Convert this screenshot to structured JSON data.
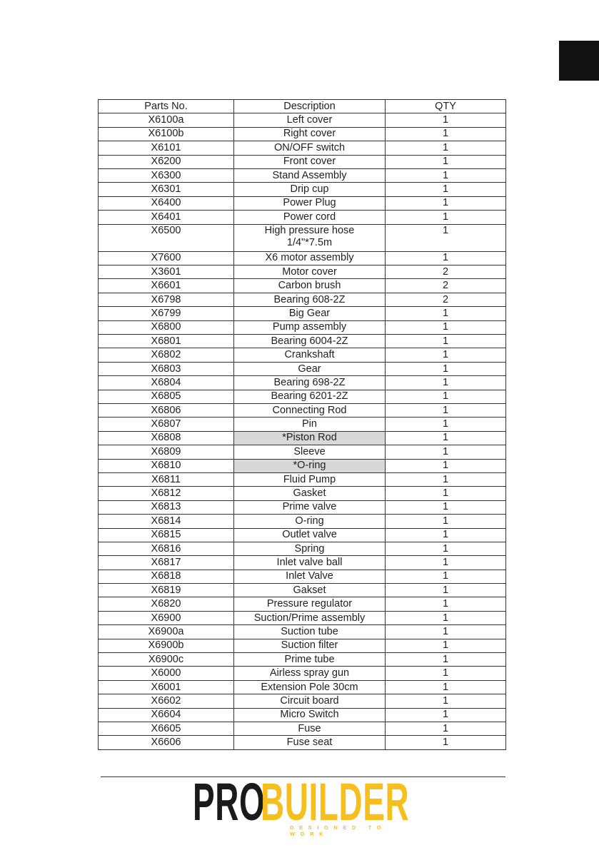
{
  "header_row": {
    "part": "Parts No.",
    "desc": "Description",
    "qty": "QTY"
  },
  "rows": [
    {
      "part": "X6100a",
      "desc": "Left cover",
      "qty": "1"
    },
    {
      "part": "X6100b",
      "desc": "Right cover",
      "qty": "1"
    },
    {
      "part": "X6101",
      "desc": "ON/OFF switch",
      "qty": "1"
    },
    {
      "part": "X6200",
      "desc": "Front cover",
      "qty": "1"
    },
    {
      "part": "X6300",
      "desc": "Stand Assembly",
      "qty": "1"
    },
    {
      "part": "X6301",
      "desc": "Drip cup",
      "qty": "1"
    },
    {
      "part": "X6400",
      "desc": "Power Plug",
      "qty": "1"
    },
    {
      "part": "X6401",
      "desc": "Power cord",
      "qty": "1"
    },
    {
      "part": "X6500",
      "desc": "High pressure hose\n1/4\"*7.5m",
      "qty": "1",
      "tall": true
    },
    {
      "part": "X7600",
      "desc": "X6 motor assembly",
      "qty": "1"
    },
    {
      "part": "X3601",
      "desc": "Motor cover",
      "qty": "2"
    },
    {
      "part": "X6601",
      "desc": "Carbon brush",
      "qty": "2"
    },
    {
      "part": "X6798",
      "desc": "Bearing 608-2Z",
      "qty": "2"
    },
    {
      "part": "X6799",
      "desc": "Big Gear",
      "qty": "1"
    },
    {
      "part": "X6800",
      "desc": "Pump assembly",
      "qty": "1"
    },
    {
      "part": "X6801",
      "desc": "Bearing 6004-2Z",
      "qty": "1"
    },
    {
      "part": "X6802",
      "desc": "Crankshaft",
      "qty": "1"
    },
    {
      "part": "X6803",
      "desc": "Gear",
      "qty": "1"
    },
    {
      "part": "X6804",
      "desc": "Bearing 698-2Z",
      "qty": "1"
    },
    {
      "part": "X6805",
      "desc": "Bearing 6201-2Z",
      "qty": "1"
    },
    {
      "part": "X6806",
      "desc": "Connecting Rod",
      "qty": "1"
    },
    {
      "part": "X6807",
      "desc": "Pin",
      "qty": "1"
    },
    {
      "part": "X6808",
      "desc": "*Piston Rod",
      "qty": "1",
      "highlight": true
    },
    {
      "part": "X6809",
      "desc": "Sleeve",
      "qty": "1"
    },
    {
      "part": "X6810",
      "desc": "*O-ring",
      "qty": "1",
      "highlight": true
    },
    {
      "part": "X6811",
      "desc": "Fluid Pump",
      "qty": "1"
    },
    {
      "part": "X6812",
      "desc": "Gasket",
      "qty": "1"
    },
    {
      "part": "X6813",
      "desc": "Prime valve",
      "qty": "1"
    },
    {
      "part": "X6814",
      "desc": "O-ring",
      "qty": "1"
    },
    {
      "part": "X6815",
      "desc": "Outlet valve",
      "qty": "1"
    },
    {
      "part": "X6816",
      "desc": "Spring",
      "qty": "1"
    },
    {
      "part": "X6817",
      "desc": "Inlet valve ball",
      "qty": "1"
    },
    {
      "part": "X6818",
      "desc": "Inlet Valve",
      "qty": "1"
    },
    {
      "part": "X6819",
      "desc": "Gakset",
      "qty": "1"
    },
    {
      "part": "X6820",
      "desc": "Pressure regulator",
      "qty": "1"
    },
    {
      "part": "X6900",
      "desc": "Suction/Prime assembly",
      "qty": "1"
    },
    {
      "part": "X6900a",
      "desc": "Suction tube",
      "qty": "1"
    },
    {
      "part": "X6900b",
      "desc": "Suction filter",
      "qty": "1"
    },
    {
      "part": "X6900c",
      "desc": "Prime tube",
      "qty": "1"
    },
    {
      "part": "X6000",
      "desc": "Airless spray gun",
      "qty": "1"
    },
    {
      "part": "X6001",
      "desc": "Extension Pole 30cm",
      "qty": "1"
    },
    {
      "part": "X6602",
      "desc": "Circuit board",
      "qty": "1"
    },
    {
      "part": "X6604",
      "desc": "Micro Switch",
      "qty": "1"
    },
    {
      "part": "X6605",
      "desc": "Fuse",
      "qty": "1"
    },
    {
      "part": "X6606",
      "desc": "Fuse seat",
      "qty": "1"
    }
  ],
  "logo": {
    "pro": "PRO",
    "builder": "BUILDER",
    "tagline": "DESIGNED TO WORK",
    "colors": {
      "pro": "#1a1a1a",
      "builder": "#f7bf1e"
    }
  },
  "highlight_color": "#d8d8d8"
}
